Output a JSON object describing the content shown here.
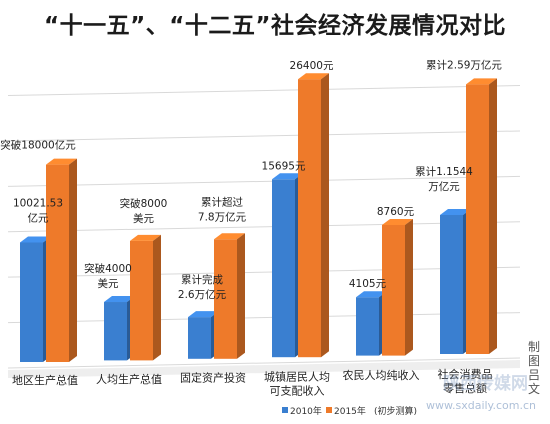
{
  "title": "“十一五”、“十二五”社会经济发展情况对比",
  "chart_data": {
    "type": "bar",
    "title": "“十一五”、“十二五”社会经济发展情况对比",
    "categories": [
      "地区生产总值",
      "人均生产总值",
      "固定资产投资",
      "城镇居民人均可支配收入",
      "农民人均纯收入",
      "社会消费品零售总额"
    ],
    "category_lines": [
      [
        "地区生产总值"
      ],
      [
        "人均生产总值"
      ],
      [
        "固定资产投资"
      ],
      [
        "城镇居民人均",
        "可支配收入"
      ],
      [
        "农民人均纯收入"
      ],
      [
        "社会消费品",
        "零售总额"
      ]
    ],
    "series": [
      {
        "name": "2010年",
        "color": "#3a7fd0",
        "values": [
          10021.53,
          4000,
          2.6,
          15695,
          4105,
          1.1544
        ],
        "labels": [
          [
            "10021.53",
            "亿元"
          ],
          [
            "突破4000",
            "美元"
          ],
          [
            "累计完成",
            "2.6万亿元"
          ],
          [
            "15695元"
          ],
          [
            "4105元"
          ],
          [
            "累计1.1544",
            "万亿元"
          ]
        ],
        "heights": [
          0.43,
          0.21,
          0.15,
          0.64,
          0.21,
          0.5
        ]
      },
      {
        "name": "2015年",
        "color": "#ee7a2a",
        "values": [
          18000,
          8000,
          7.8,
          26400,
          8760,
          2.59
        ],
        "labels": [
          [
            "突破18000亿元"
          ],
          [
            "突破8000",
            "美元"
          ],
          [
            "累计超过",
            "7.8万亿元"
          ],
          [
            "26400元"
          ],
          [
            "8760元"
          ],
          [
            "累计2.59万亿元"
          ]
        ],
        "heights": [
          0.71,
          0.43,
          0.43,
          1.0,
          0.47,
          0.97
        ]
      }
    ],
    "legend_note": "(初步测算)",
    "grid": true,
    "legend_position": "bottom-right"
  },
  "credit": "制图 吕文",
  "watermark": "陕西传媒网",
  "watermark_url": "www.sxdaily.com.cn"
}
